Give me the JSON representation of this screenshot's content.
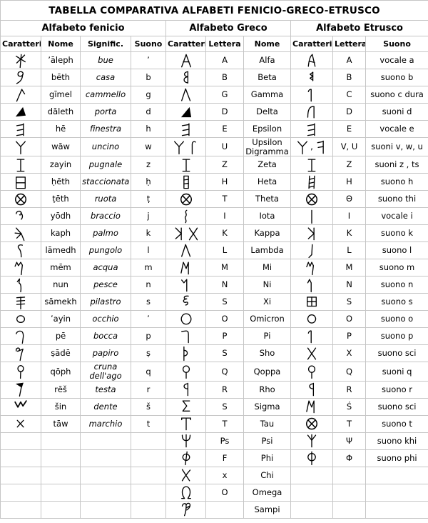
{
  "title": "TABELLA COMPARATIVA ALFABETI FENICIO-GRECO-ETRUSCO",
  "groups": [
    {
      "label": "Alfabeto fenicio",
      "span": 4
    },
    {
      "label": "Alfabeto Greco",
      "span": 3
    },
    {
      "label": "Alfabeto Etrusco",
      "span": 3
    }
  ],
  "columns": [
    "Caratteri",
    "Nome",
    "Signific.",
    "Suono",
    "Caratteri",
    "Lettera",
    "Nome",
    "Caratteri",
    "Lettera",
    "Suono"
  ],
  "colors": {
    "border": "#c6c6c6",
    "text": "#000000",
    "background": "#ffffff"
  },
  "rows": [
    {
      "ph_glyphs": [
        "ph-aleph"
      ],
      "ph_nome": "ʼāleph",
      "ph_signific": "bue",
      "ph_suono": "ʼ",
      "gk_glyphs": [
        "gk-alpha"
      ],
      "gk_lettera": "A",
      "gk_nome": "Alfa",
      "et_glyphs": [
        "et-a"
      ],
      "et_lettera": "A",
      "et_suono": "vocale a"
    },
    {
      "ph_glyphs": [
        "ph-beth"
      ],
      "ph_nome": "bēth",
      "ph_signific": "casa",
      "ph_suono": "b",
      "gk_glyphs": [
        "gk-beta"
      ],
      "gk_lettera": "B",
      "gk_nome": "Beta",
      "et_glyphs": [
        "et-8"
      ],
      "et_lettera": "B",
      "et_suono": "suono b"
    },
    {
      "ph_glyphs": [
        "ph-gimel"
      ],
      "ph_nome": "gīmel",
      "ph_signific": "cammello",
      "ph_suono": "g",
      "gk_glyphs": [
        "caret"
      ],
      "gk_lettera": "G",
      "gk_nome": "Gamma",
      "et_glyphs": [
        "hook1"
      ],
      "et_lettera": "C",
      "et_suono": "suono c dura"
    },
    {
      "ph_glyphs": [
        "ph-daleth"
      ],
      "ph_nome": "dāleth",
      "ph_signific": "porta",
      "ph_suono": "d",
      "gk_glyphs": [
        "gk-delta"
      ],
      "gk_lettera": "D",
      "gk_nome": "Delta",
      "et_glyphs": [
        "et-d"
      ],
      "et_lettera": "D",
      "et_suono": "suoni d"
    },
    {
      "ph_glyphs": [
        "bars-e"
      ],
      "ph_nome": "hē",
      "ph_signific": "finestra",
      "ph_suono": "h",
      "gk_glyphs": [
        "bars-e"
      ],
      "gk_lettera": "E",
      "gk_nome": "Epsilon",
      "et_glyphs": [
        "bars-e"
      ],
      "et_lettera": "E",
      "et_suono": "vocale e"
    },
    {
      "ph_glyphs": [
        "y-glyph"
      ],
      "ph_nome": "wāw",
      "ph_signific": "uncino",
      "ph_suono": "w",
      "gk_glyphs": [
        "y-glyph",
        "digamma-s"
      ],
      "gk_lettera": "U",
      "gk_nome": "Upsilon Digramma",
      "et_glyphs": [
        "y-glyph",
        ",",
        "et-f"
      ],
      "et_lettera": "V, U",
      "et_suono": "suoni v, w, u"
    },
    {
      "ph_glyphs": [
        "i-serif"
      ],
      "ph_nome": "zayin",
      "ph_signific": "pugnale",
      "ph_suono": "z",
      "gk_glyphs": [
        "i-serif"
      ],
      "gk_lettera": "Z",
      "gk_nome": "Zeta",
      "et_glyphs": [
        "i-serif"
      ],
      "et_lettera": "Z",
      "et_suono": "suoni z , ts"
    },
    {
      "ph_glyphs": [
        "ph-heth"
      ],
      "ph_nome": "ḥēth",
      "ph_signific": "staccionata",
      "ph_suono": "ḥ",
      "gk_glyphs": [
        "heta-box"
      ],
      "gk_lettera": "H",
      "gk_nome": "Heta",
      "et_glyphs": [
        "heta-ladder"
      ],
      "et_lettera": "H",
      "et_suono": "suono h"
    },
    {
      "ph_glyphs": [
        "circle-x"
      ],
      "ph_nome": "ṭēth",
      "ph_signific": "ruota",
      "ph_suono": "ṭ",
      "gk_glyphs": [
        "circle-x"
      ],
      "gk_lettera": "T",
      "gk_nome": "Theta",
      "et_glyphs": [
        "circle-x"
      ],
      "et_lettera": "Θ",
      "et_suono": "suono thi"
    },
    {
      "ph_glyphs": [
        "ph-yodh"
      ],
      "ph_nome": "yōdh",
      "ph_signific": "braccio",
      "ph_suono": "j",
      "gk_glyphs": [
        "iota-squiggle"
      ],
      "gk_lettera": "I",
      "gk_nome": "Iota",
      "et_glyphs": [
        "i-plain"
      ],
      "et_lettera": "I",
      "et_suono": "vocale i"
    },
    {
      "ph_glyphs": [
        "ph-kaph"
      ],
      "ph_nome": "kaph",
      "ph_signific": "palmo",
      "ph_suono": "k",
      "gk_glyphs": [
        "kappa-mirror",
        "chi-curve"
      ],
      "gk_lettera": "K",
      "gk_nome": "Kappa",
      "et_glyphs": [
        "kappa-mirror"
      ],
      "et_lettera": "K",
      "et_suono": "suono k"
    },
    {
      "ph_glyphs": [
        "ph-lamedh"
      ],
      "ph_nome": "lāmedh",
      "ph_signific": "pungolo",
      "ph_suono": "l",
      "gk_glyphs": [
        "caret"
      ],
      "gk_lettera": "L",
      "gk_nome": "Lambda",
      "et_glyphs": [
        "et-l"
      ],
      "et_lettera": "L",
      "et_suono": "suono l"
    },
    {
      "ph_glyphs": [
        "ph-mem"
      ],
      "ph_nome": "mēm",
      "ph_signific": "acqua",
      "ph_suono": "m",
      "gk_glyphs": [
        "mu-m"
      ],
      "gk_lettera": "M",
      "gk_nome": "Mi",
      "et_glyphs": [
        "et-m"
      ],
      "et_lettera": "M",
      "et_suono": "suono m"
    },
    {
      "ph_glyphs": [
        "ph-nun"
      ],
      "ph_nome": "nun",
      "ph_signific": "pesce",
      "ph_suono": "n",
      "gk_glyphs": [
        "nu-n"
      ],
      "gk_lettera": "N",
      "gk_nome": "Ni",
      "et_glyphs": [
        "et-n"
      ],
      "et_lettera": "N",
      "et_suono": "suono n"
    },
    {
      "ph_glyphs": [
        "ph-samekh"
      ],
      "ph_nome": "sāmekh",
      "ph_signific": "pilastro",
      "ph_suono": "s",
      "gk_glyphs": [
        "xi-squiggle"
      ],
      "gk_lettera": "S",
      "gk_nome": "Xi",
      "et_glyphs": [
        "xi-box"
      ],
      "et_lettera": "S",
      "et_suono": "suono s"
    },
    {
      "ph_glyphs": [
        "ph-ayin"
      ],
      "ph_nome": "ʼayin",
      "ph_signific": "occhio",
      "ph_suono": "ʼ",
      "gk_glyphs": [
        "o-circle"
      ],
      "gk_lettera": "O",
      "gk_nome": "Omicron",
      "et_glyphs": [
        "o-small"
      ],
      "et_lettera": "O",
      "et_suono": "suono o"
    },
    {
      "ph_glyphs": [
        "ph-pe"
      ],
      "ph_nome": "pē",
      "ph_signific": "bocca",
      "ph_suono": "p",
      "gk_glyphs": [
        "pi-hook"
      ],
      "gk_lettera": "P",
      "gk_nome": "Pi",
      "et_glyphs": [
        "hook1"
      ],
      "et_lettera": "P",
      "et_suono": "suono p"
    },
    {
      "ph_glyphs": [
        "ph-sade"
      ],
      "ph_nome": "ṣādē",
      "ph_signific": "papiro",
      "ph_suono": "ṣ",
      "gk_glyphs": [
        "sho-thorn"
      ],
      "gk_lettera": "S",
      "gk_nome": "Sho",
      "et_glyphs": [
        "x-plain"
      ],
      "et_lettera": "X",
      "et_suono": "suono sci"
    },
    {
      "ph_glyphs": [
        "ph-qoph"
      ],
      "ph_nome": "qōph",
      "ph_signific": "cruna dell'ago",
      "ph_suono": "q",
      "gk_glyphs": [
        "qoppa"
      ],
      "gk_lettera": "Q",
      "gk_nome": "Qoppa",
      "et_glyphs": [
        "qoppa"
      ],
      "et_lettera": "Q",
      "et_suono": "suoni q"
    },
    {
      "ph_glyphs": [
        "ph-resh"
      ],
      "ph_nome": "rēš",
      "ph_signific": "testa",
      "ph_suono": "r",
      "gk_glyphs": [
        "rho-flag"
      ],
      "gk_lettera": "R",
      "gk_nome": "Rho",
      "et_glyphs": [
        "rho-flag"
      ],
      "et_lettera": "R",
      "et_suono": "suono r"
    },
    {
      "ph_glyphs": [
        "ph-shin"
      ],
      "ph_nome": "šin",
      "ph_signific": "dente",
      "ph_suono": "š",
      "gk_glyphs": [
        "sigma"
      ],
      "gk_lettera": "S",
      "gk_nome": "Sigma",
      "et_glyphs": [
        "mu-m"
      ],
      "et_lettera": "Ś",
      "et_suono": "suono sci"
    },
    {
      "ph_glyphs": [
        "ph-taw"
      ],
      "ph_nome": "tāw",
      "ph_signific": "marchio",
      "ph_suono": "t",
      "gk_glyphs": [
        "tau-serif"
      ],
      "gk_lettera": "T",
      "gk_nome": "Tau",
      "et_glyphs": [
        "circle-x"
      ],
      "et_lettera": "T",
      "et_suono": "suono t"
    },
    {
      "ph_glyphs": [],
      "ph_nome": "",
      "ph_signific": "",
      "ph_suono": "",
      "gk_glyphs": [
        "psi-serif"
      ],
      "gk_lettera": "Ps",
      "gk_nome": "Psi",
      "et_glyphs": [
        "psi-trident"
      ],
      "et_lettera": "Ψ",
      "et_suono": "suono khi"
    },
    {
      "ph_glyphs": [],
      "ph_nome": "",
      "ph_signific": "",
      "ph_suono": "",
      "gk_glyphs": [
        "phi-loop"
      ],
      "gk_lettera": "F",
      "gk_nome": "Phi",
      "et_glyphs": [
        "phi-caps"
      ],
      "et_lettera": "Φ",
      "et_suono": "suono phi"
    },
    {
      "ph_glyphs": [],
      "ph_nome": "",
      "ph_signific": "",
      "ph_suono": "",
      "gk_glyphs": [
        "chi-arch"
      ],
      "gk_lettera": "x",
      "gk_nome": "Chi",
      "et_glyphs": [],
      "et_lettera": "",
      "et_suono": ""
    },
    {
      "ph_glyphs": [],
      "ph_nome": "",
      "ph_signific": "",
      "ph_suono": "",
      "gk_glyphs": [
        "omega"
      ],
      "gk_lettera": "O",
      "gk_nome": "Omega",
      "et_glyphs": [],
      "et_lettera": "",
      "et_suono": ""
    },
    {
      "ph_glyphs": [],
      "ph_nome": "",
      "ph_signific": "",
      "ph_suono": "",
      "gk_glyphs": [
        "sampi"
      ],
      "gk_lettera": "",
      "gk_nome": "Sampi",
      "et_glyphs": [],
      "et_lettera": "",
      "et_suono": ""
    }
  ]
}
